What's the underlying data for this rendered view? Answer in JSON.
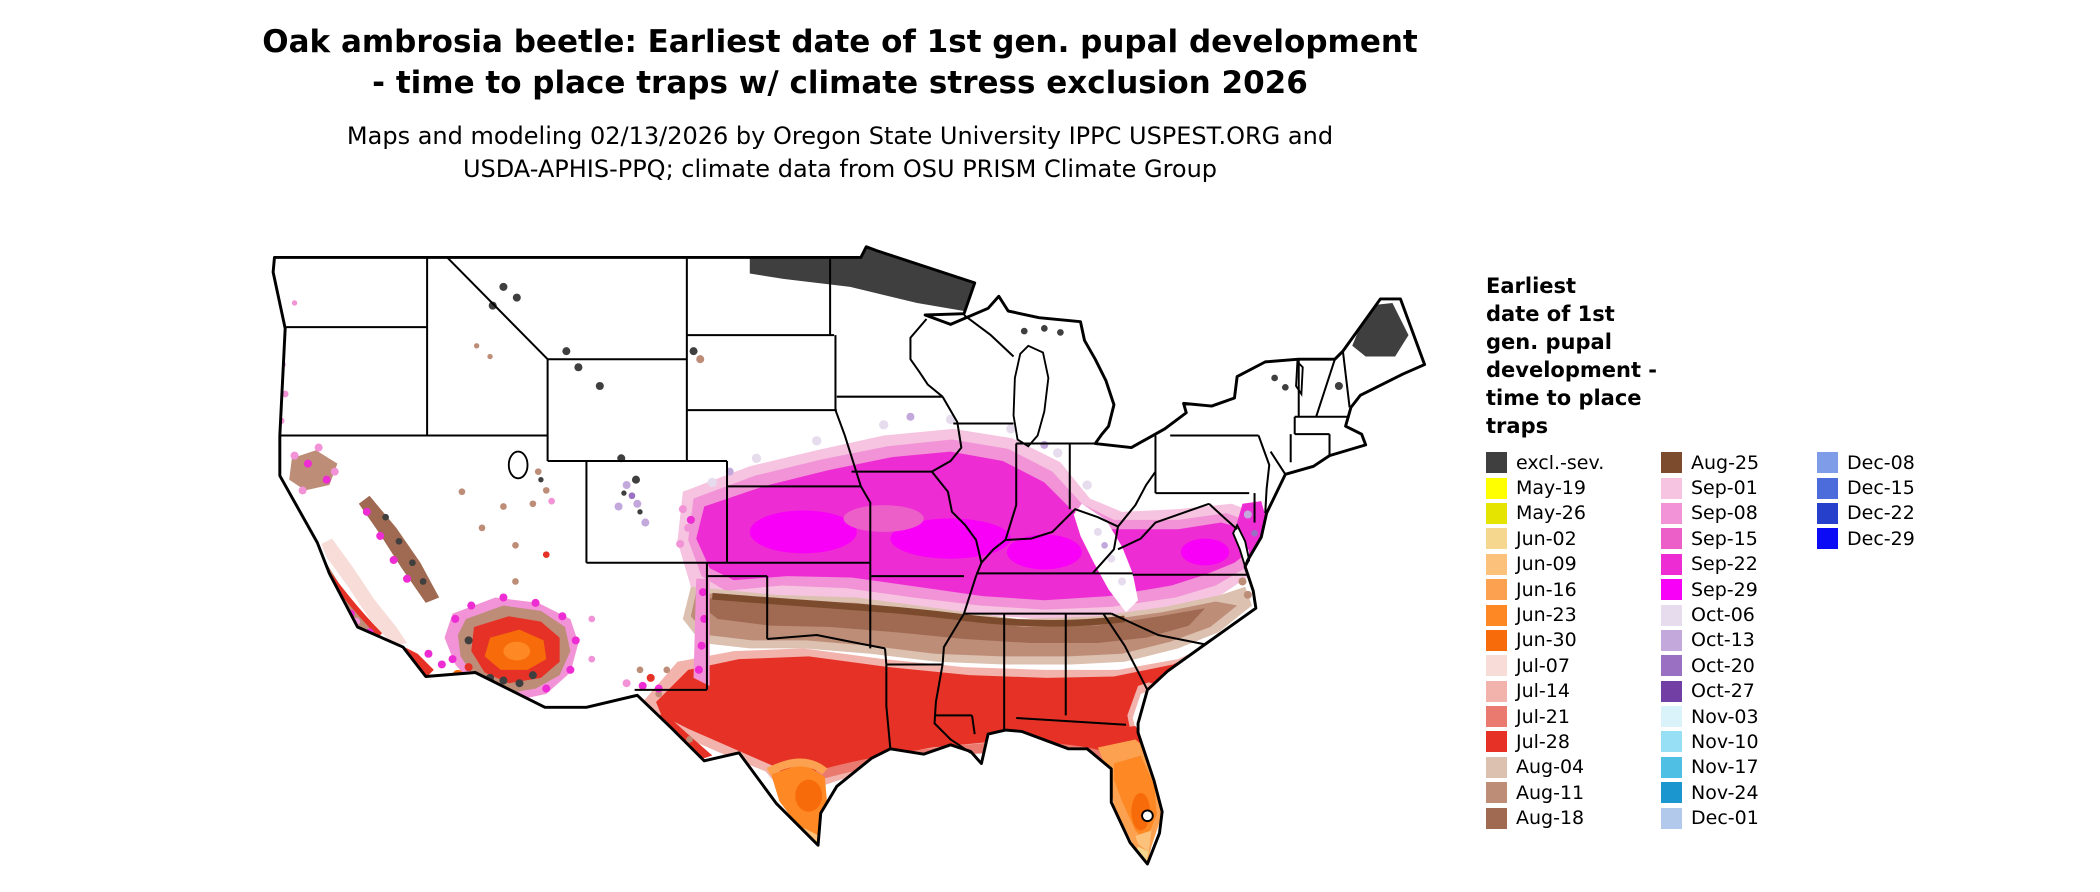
{
  "title": {
    "line1": "Oak ambrosia beetle: Earliest date of 1st gen. pupal development",
    "line2": "- time to place traps w/ climate stress exclusion 2026"
  },
  "subtitle": {
    "line1": "Maps and modeling 02/13/2026 by Oregon State University IPPC USPEST.ORG and",
    "line2": "USDA-APHIS-PPQ; climate data from OSU PRISM Climate Group"
  },
  "legend": {
    "title_lines": [
      "Earliest",
      "date of 1st",
      "gen. pupal",
      "development -",
      "time to place",
      "traps"
    ],
    "columns": [
      [
        {
          "key": "excl",
          "label": "excl.-sev.",
          "color": "#3f3f3f"
        },
        {
          "key": "may19",
          "label": "May-19",
          "color": "#ffff00"
        },
        {
          "key": "may26",
          "label": "May-26",
          "color": "#e4e400"
        },
        {
          "key": "jun02",
          "label": "Jun-02",
          "color": "#f5d78e"
        },
        {
          "key": "jun09",
          "label": "Jun-09",
          "color": "#fcc27c"
        },
        {
          "key": "jun16",
          "label": "Jun-16",
          "color": "#fca14f"
        },
        {
          "key": "jun23",
          "label": "Jun-23",
          "color": "#fd8824"
        },
        {
          "key": "jun30",
          "label": "Jun-30",
          "color": "#f76b0a"
        },
        {
          "key": "jul07",
          "label": "Jul-07",
          "color": "#f7dcd8"
        },
        {
          "key": "jul14",
          "label": "Jul-14",
          "color": "#f2b3ac"
        },
        {
          "key": "jul21",
          "label": "Jul-21",
          "color": "#ea7a6f"
        },
        {
          "key": "jul28",
          "label": "Jul-28",
          "color": "#e63226"
        },
        {
          "key": "aug04",
          "label": "Aug-04",
          "color": "#dcc0b0"
        },
        {
          "key": "aug11",
          "label": "Aug-11",
          "color": "#bd8d78"
        },
        {
          "key": "aug18",
          "label": "Aug-18",
          "color": "#a06a52"
        }
      ],
      [
        {
          "key": "aug25",
          "label": "Aug-25",
          "color": "#7c4a2d"
        },
        {
          "key": "sep01",
          "label": "Sep-01",
          "color": "#f6c3e0"
        },
        {
          "key": "sep08",
          "label": "Sep-08",
          "color": "#f193d6"
        },
        {
          "key": "sep15",
          "label": "Sep-15",
          "color": "#ec5fc8"
        },
        {
          "key": "sep22",
          "label": "Sep-22",
          "color": "#ee2cd3"
        },
        {
          "key": "sep29",
          "label": "Sep-29",
          "color": "#f800f8"
        },
        {
          "key": "oct06",
          "label": "Oct-06",
          "color": "#e6dcee"
        },
        {
          "key": "oct13",
          "label": "Oct-13",
          "color": "#c3a8dc"
        },
        {
          "key": "oct20",
          "label": "Oct-20",
          "color": "#9a70c2"
        },
        {
          "key": "oct27",
          "label": "Oct-27",
          "color": "#7240a5"
        },
        {
          "key": "nov03",
          "label": "Nov-03",
          "color": "#daf3fb"
        },
        {
          "key": "nov10",
          "label": "Nov-10",
          "color": "#97dff4"
        },
        {
          "key": "nov17",
          "label": "Nov-17",
          "color": "#4fc0e4"
        },
        {
          "key": "nov24",
          "label": "Nov-24",
          "color": "#1b96cf"
        },
        {
          "key": "dec01",
          "label": "Dec-01",
          "color": "#b3c9ec"
        }
      ],
      [
        {
          "key": "dec08",
          "label": "Dec-08",
          "color": "#7e9ce8"
        },
        {
          "key": "dec15",
          "label": "Dec-15",
          "color": "#4c6cdb"
        },
        {
          "key": "dec22",
          "label": "Dec-22",
          "color": "#2740cc"
        },
        {
          "key": "dec29",
          "label": "Dec-29",
          "color": "#0b0bf5"
        }
      ]
    ]
  },
  "map": {
    "region": "Contiguous United States",
    "background_color": "#ffffff",
    "border_color": "#000000",
    "no_data_color": "#ffffff"
  }
}
